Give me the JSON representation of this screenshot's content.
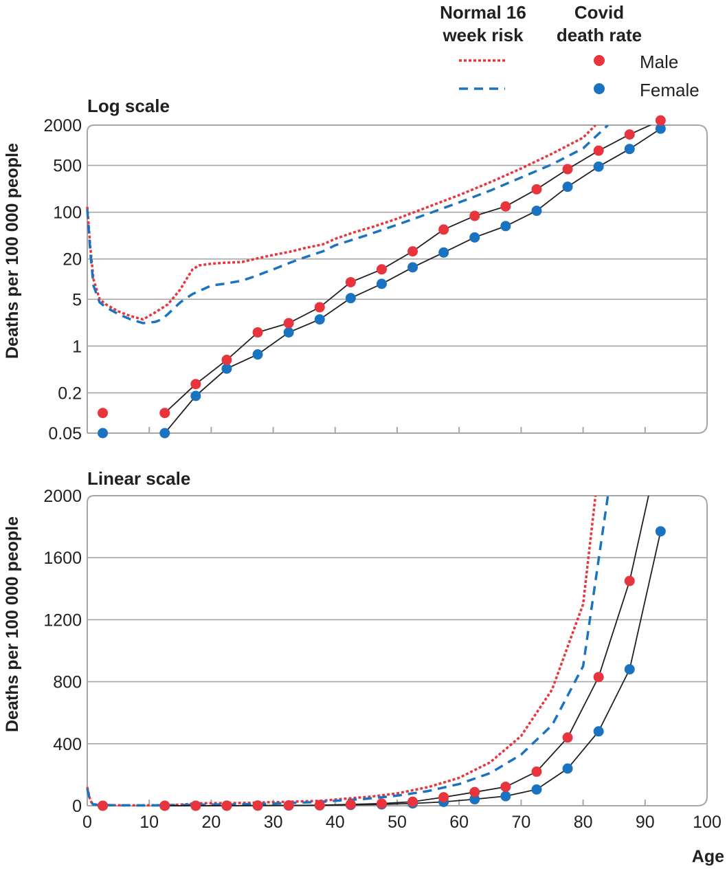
{
  "legend": {
    "normal_header": [
      "Normal 16",
      "week risk"
    ],
    "covid_header": [
      "Covid",
      "death rate"
    ],
    "male_label": "Male",
    "female_label": "Female"
  },
  "colors": {
    "male": "#e8343c",
    "female": "#1a73c0",
    "connector": "#231f20",
    "grid": "#a6a6a6",
    "frame": "#a6a6a6"
  },
  "chart_data": [
    {
      "type": "line",
      "title": "Log scale",
      "ylabel": "Deaths per 100 000 people",
      "xlabel": "",
      "yscale": "log",
      "ylim": [
        0.05,
        2000
      ],
      "xlim": [
        0,
        100
      ],
      "yticks": [
        "2000",
        "500",
        "100",
        "20",
        "5",
        "1",
        "0.2",
        "0.05"
      ],
      "ytick_values": [
        2000,
        500,
        100,
        20,
        5,
        1,
        0.2,
        0.05
      ],
      "xtick_values": [
        10,
        20,
        30,
        40,
        50,
        60,
        70,
        80,
        90
      ],
      "grid": true
    },
    {
      "type": "line",
      "title": "Linear scale",
      "ylabel": "Deaths per 100 000 people",
      "xlabel": "Age",
      "yscale": "linear",
      "ylim": [
        0,
        2000
      ],
      "xlim": [
        0,
        100
      ],
      "yticks": [
        "2000",
        "1600",
        "1200",
        "800",
        "400",
        "0"
      ],
      "ytick_values": [
        2000,
        1600,
        1200,
        800,
        400,
        0
      ],
      "xticks": [
        "0",
        "10",
        "20",
        "30",
        "40",
        "50",
        "60",
        "70",
        "80",
        "90",
        "100"
      ],
      "xtick_values": [
        0,
        10,
        20,
        30,
        40,
        50,
        60,
        70,
        80,
        90,
        100
      ],
      "grid": true
    }
  ],
  "series_data": {
    "normal_male": {
      "style": "dotted",
      "x": [
        0,
        0.5,
        1,
        2,
        3,
        5,
        7,
        9,
        11,
        13,
        15,
        16,
        17,
        18,
        20,
        22,
        25,
        27,
        30,
        33,
        35,
        38,
        40,
        43,
        46,
        50,
        55,
        60,
        65,
        70,
        75,
        80,
        82
      ],
      "y": [
        120,
        30,
        10,
        5,
        4.2,
        3.3,
        2.8,
        2.5,
        3.2,
        4.2,
        7,
        10,
        14,
        16,
        17,
        17.5,
        18,
        20,
        23,
        26,
        29,
        33,
        40,
        50,
        60,
        80,
        120,
        180,
        280,
        450,
        750,
        1300,
        2000
      ]
    },
    "normal_female": {
      "style": "dashed",
      "x": [
        0,
        0.5,
        1,
        2,
        3,
        5,
        7,
        9,
        11,
        12,
        13,
        15,
        17,
        20,
        22,
        25,
        27,
        30,
        33,
        35,
        38,
        40,
        45,
        50,
        55,
        60,
        65,
        70,
        75,
        80,
        84
      ],
      "y": [
        110,
        25,
        8,
        4.5,
        3.8,
        3,
        2.5,
        2.2,
        2.3,
        2.5,
        3,
        4.5,
        6,
        8,
        8.5,
        9.5,
        11,
        14,
        18,
        21,
        26,
        32,
        45,
        65,
        95,
        140,
        210,
        330,
        520,
        900,
        2000
      ]
    },
    "covid_male": {
      "x": [
        2.5,
        12.5,
        17.5,
        22.5,
        27.5,
        32.5,
        37.5,
        42.5,
        47.5,
        52.5,
        57.5,
        62.5,
        67.5,
        72.5,
        77.5,
        82.5,
        87.5,
        92.5
      ],
      "y": [
        0.1,
        0.1,
        0.27,
        0.62,
        1.6,
        2.2,
        3.8,
        9,
        14,
        26,
        55,
        88,
        122,
        220,
        440,
        830,
        1450,
        2350
      ],
      "connect_from": 1
    },
    "covid_female": {
      "x": [
        2.5,
        12.5,
        17.5,
        22.5,
        27.5,
        32.5,
        37.5,
        42.5,
        47.5,
        52.5,
        57.5,
        62.5,
        67.5,
        72.5,
        77.5,
        82.5,
        87.5,
        92.5
      ],
      "y": [
        0.05,
        0.05,
        0.18,
        0.46,
        0.75,
        1.6,
        2.5,
        5.2,
        8.5,
        15,
        25,
        42,
        62,
        105,
        240,
        480,
        880,
        1770
      ],
      "connect_from": 1
    }
  }
}
